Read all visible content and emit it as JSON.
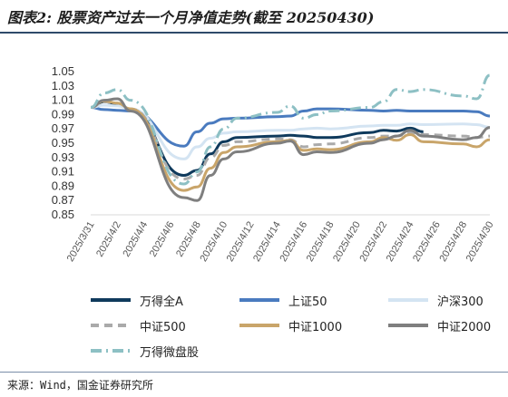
{
  "title": "图表2: 股票资产过去一个月净值走势(截至 20250430)",
  "source": "来源：Wind，国金证券研究所",
  "chart_data": {
    "type": "line",
    "x": [
      "2025/3/31",
      "2025/4/1",
      "2025/4/2",
      "2025/4/3",
      "2025/4/7",
      "2025/4/8",
      "2025/4/9",
      "2025/4/10",
      "2025/4/11",
      "2025/4/14",
      "2025/4/15",
      "2025/4/16",
      "2025/4/17",
      "2025/4/18",
      "2025/4/21",
      "2025/4/22",
      "2025/4/23",
      "2025/4/24",
      "2025/4/25",
      "2025/4/28",
      "2025/4/29",
      "2025/4/30"
    ],
    "x_tick_labels": [
      "2025/3/31",
      "2025/4/2",
      "2025/4/4",
      "2025/4/6",
      "2025/4/8",
      "2025/4/10",
      "2025/4/12",
      "2025/4/14",
      "2025/4/16",
      "2025/4/18",
      "2025/4/20",
      "2025/4/22",
      "2025/4/24",
      "2025/4/26",
      "2025/4/28",
      "2025/4/30"
    ],
    "y_ticks": [
      "0.85",
      "0.87",
      "0.89",
      "0.91",
      "0.93",
      "0.95",
      "0.97",
      "0.99",
      "1.01",
      "1.03",
      "1.05"
    ],
    "ylim": [
      0.85,
      1.05
    ],
    "legend_position": "bottom",
    "series": [
      {
        "name": "万得全A",
        "color": "#0f3a5c",
        "dash": "solid",
        "width": 3,
        "values": [
          1.0,
          1.008,
          1.005,
          0.997,
          0.905,
          0.912,
          0.935,
          0.952,
          0.958,
          0.96,
          0.961,
          0.96,
          0.958,
          0.958,
          0.965,
          0.968,
          0.967,
          0.971,
          0.966,
          null,
          null,
          null
        ]
      },
      {
        "name": "上证50",
        "color": "#4a7bbf",
        "dash": "solid",
        "width": 3,
        "values": [
          1.0,
          0.997,
          0.996,
          0.995,
          0.946,
          0.966,
          0.978,
          0.984,
          0.985,
          0.987,
          0.988,
          0.995,
          0.998,
          0.998,
          0.996,
          0.995,
          0.996,
          0.995,
          0.995,
          0.995,
          0.994,
          0.988
        ]
      },
      {
        "name": "沪深300",
        "color": "#d4e4f2",
        "dash": "solid",
        "width": 3,
        "values": [
          1.0,
          1.003,
          1.002,
          0.998,
          0.928,
          0.945,
          0.957,
          0.964,
          0.966,
          0.968,
          0.968,
          0.97,
          0.971,
          0.97,
          0.974,
          0.975,
          0.975,
          0.977,
          0.976,
          0.977,
          0.976,
          0.972
        ]
      },
      {
        "name": "中证500",
        "color": "#aaaaaa",
        "dash": "dash",
        "width": 3,
        "values": [
          1.0,
          1.008,
          1.006,
          0.998,
          0.9,
          0.905,
          0.93,
          0.947,
          0.952,
          0.956,
          0.955,
          0.945,
          0.948,
          0.949,
          0.958,
          0.96,
          0.96,
          0.965,
          0.962,
          0.96,
          0.958,
          0.96
        ]
      },
      {
        "name": "中证1000",
        "color": "#c9a56a",
        "dash": "solid",
        "width": 3,
        "values": [
          1.0,
          1.009,
          1.006,
          0.998,
          0.884,
          0.889,
          0.915,
          0.937,
          0.945,
          0.952,
          0.954,
          0.94,
          0.942,
          0.941,
          0.952,
          0.958,
          0.954,
          0.962,
          0.952,
          0.949,
          0.945,
          0.955
        ]
      },
      {
        "name": "中证2000",
        "color": "#7f7f7f",
        "dash": "solid",
        "width": 3,
        "values": [
          1.0,
          1.01,
          1.012,
          0.995,
          0.874,
          0.87,
          0.905,
          0.928,
          0.938,
          0.95,
          0.953,
          0.934,
          0.938,
          0.937,
          0.95,
          0.955,
          0.96,
          0.968,
          0.96,
          0.955,
          0.958,
          0.972
        ]
      },
      {
        "name": "万得微盘股",
        "color": "#8dc0c4",
        "dash": "dashdot",
        "width": 3,
        "values": [
          1.0,
          1.02,
          1.025,
          1.01,
          0.893,
          0.91,
          0.945,
          0.97,
          0.985,
          0.993,
          1.002,
          0.985,
          0.99,
          0.995,
          1.0,
          1.008,
          1.025,
          1.022,
          1.025,
          1.016,
          1.012,
          1.045
        ]
      }
    ]
  }
}
